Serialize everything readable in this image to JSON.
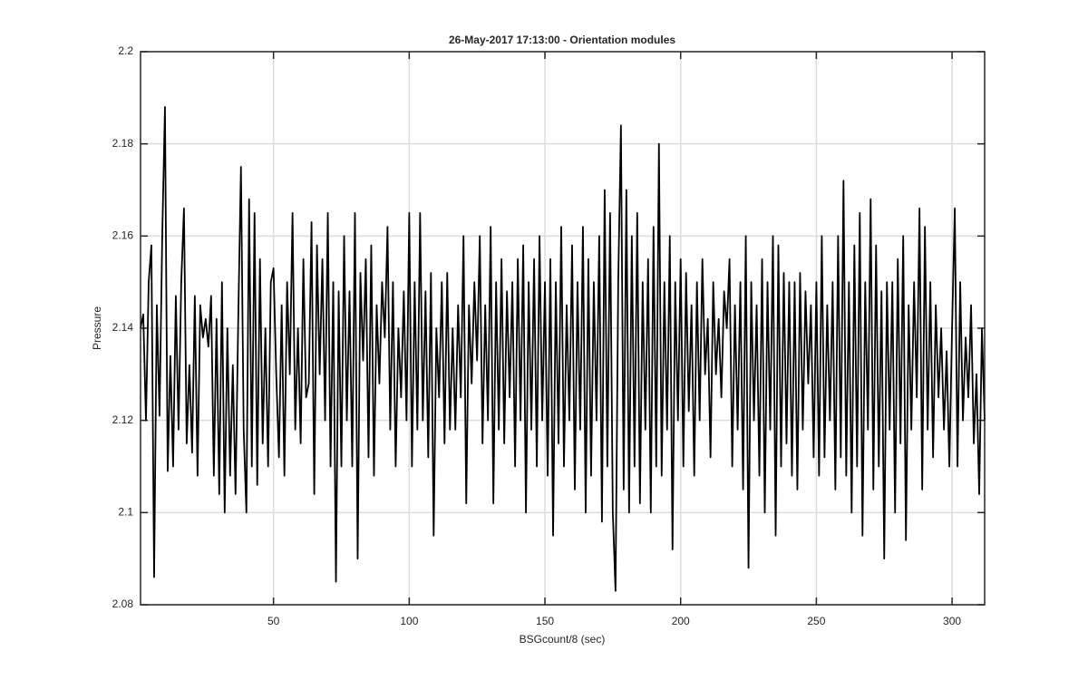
{
  "chart_data": {
    "type": "line",
    "title": "26-May-2017 17:13:00 - Orientation modules",
    "xlabel": "BSGcount/8 (sec)",
    "ylabel": "Pressure",
    "color": "#000000",
    "grid": true,
    "xlim": [
      1,
      312
    ],
    "ylim": [
      2.08,
      2.2
    ],
    "xticks": [
      50,
      100,
      150,
      200,
      250,
      300
    ],
    "yticks": [
      2.08,
      2.1,
      2.12,
      2.14,
      2.16,
      2.18,
      2.2
    ],
    "x": [
      1,
      2,
      3,
      4,
      5,
      6,
      7,
      8,
      9,
      10,
      11,
      12,
      13,
      14,
      15,
      16,
      17,
      18,
      19,
      20,
      21,
      22,
      23,
      24,
      25,
      26,
      27,
      28,
      29,
      30,
      31,
      32,
      33,
      34,
      35,
      36,
      37,
      38,
      39,
      40,
      41,
      42,
      43,
      44,
      45,
      46,
      47,
      48,
      49,
      50,
      51,
      52,
      53,
      54,
      55,
      56,
      57,
      58,
      59,
      60,
      61,
      62,
      63,
      64,
      65,
      66,
      67,
      68,
      69,
      70,
      71,
      72,
      73,
      74,
      75,
      76,
      77,
      78,
      79,
      80,
      81,
      82,
      83,
      84,
      85,
      86,
      87,
      88,
      89,
      90,
      91,
      92,
      93,
      94,
      95,
      96,
      97,
      98,
      99,
      100,
      101,
      102,
      103,
      104,
      105,
      106,
      107,
      108,
      109,
      110,
      111,
      112,
      113,
      114,
      115,
      116,
      117,
      118,
      119,
      120,
      121,
      122,
      123,
      124,
      125,
      126,
      127,
      128,
      129,
      130,
      131,
      132,
      133,
      134,
      135,
      136,
      137,
      138,
      139,
      140,
      141,
      142,
      143,
      144,
      145,
      146,
      147,
      148,
      149,
      150,
      151,
      152,
      153,
      154,
      155,
      156,
      157,
      158,
      159,
      160,
      161,
      162,
      163,
      164,
      165,
      166,
      167,
      168,
      169,
      170,
      171,
      172,
      173,
      174,
      175,
      176,
      177,
      178,
      179,
      180,
      181,
      182,
      183,
      184,
      185,
      186,
      187,
      188,
      189,
      190,
      191,
      192,
      193,
      194,
      195,
      196,
      197,
      198,
      199,
      200,
      201,
      202,
      203,
      204,
      205,
      206,
      207,
      208,
      209,
      210,
      211,
      212,
      213,
      214,
      215,
      216,
      217,
      218,
      219,
      220,
      221,
      222,
      223,
      224,
      225,
      226,
      227,
      228,
      229,
      230,
      231,
      232,
      233,
      234,
      235,
      236,
      237,
      238,
      239,
      240,
      241,
      242,
      243,
      244,
      245,
      246,
      247,
      248,
      249,
      250,
      251,
      252,
      253,
      254,
      255,
      256,
      257,
      258,
      259,
      260,
      261,
      262,
      263,
      264,
      265,
      266,
      267,
      268,
      269,
      270,
      271,
      272,
      273,
      274,
      275,
      276,
      277,
      278,
      279,
      280,
      281,
      282,
      283,
      284,
      285,
      286,
      287,
      288,
      289,
      290,
      291,
      292,
      293,
      294,
      295,
      296,
      297,
      298,
      299,
      300,
      301,
      302,
      303,
      304,
      305,
      306,
      307,
      308,
      309,
      310,
      311,
      312
    ],
    "values": [
      2.14,
      2.143,
      2.12,
      2.15,
      2.158,
      2.086,
      2.145,
      2.121,
      2.16,
      2.188,
      2.109,
      2.134,
      2.11,
      2.147,
      2.118,
      2.15,
      2.166,
      2.115,
      2.132,
      2.113,
      2.147,
      2.108,
      2.145,
      2.138,
      2.142,
      2.136,
      2.147,
      2.108,
      2.142,
      2.104,
      2.15,
      2.1,
      2.14,
      2.108,
      2.132,
      2.104,
      2.142,
      2.175,
      2.118,
      2.1,
      2.168,
      2.11,
      2.165,
      2.106,
      2.155,
      2.115,
      2.14,
      2.11,
      2.15,
      2.153,
      2.13,
      2.112,
      2.145,
      2.108,
      2.15,
      2.13,
      2.165,
      2.118,
      2.14,
      2.115,
      2.155,
      2.125,
      2.128,
      2.163,
      2.104,
      2.158,
      2.13,
      2.155,
      2.12,
      2.165,
      2.11,
      2.15,
      2.085,
      2.148,
      2.11,
      2.16,
      2.12,
      2.148,
      2.11,
      2.165,
      2.09,
      2.152,
      2.133,
      2.155,
      2.112,
      2.158,
      2.108,
      2.145,
      2.128,
      2.15,
      2.138,
      2.162,
      2.118,
      2.15,
      2.11,
      2.14,
      2.125,
      2.148,
      2.12,
      2.165,
      2.11,
      2.15,
      2.118,
      2.165,
      2.12,
      2.148,
      2.112,
      2.152,
      2.095,
      2.14,
      2.125,
      2.15,
      2.115,
      2.152,
      2.118,
      2.14,
      2.118,
      2.145,
      2.125,
      2.16,
      2.102,
      2.145,
      2.128,
      2.15,
      2.133,
      2.16,
      2.115,
      2.145,
      2.12,
      2.162,
      2.102,
      2.15,
      2.118,
      2.155,
      2.115,
      2.148,
      2.125,
      2.15,
      2.11,
      2.155,
      2.12,
      2.158,
      2.1,
      2.15,
      2.118,
      2.155,
      2.11,
      2.16,
      2.12,
      2.15,
      2.108,
      2.155,
      2.095,
      2.15,
      2.115,
      2.162,
      2.11,
      2.145,
      2.12,
      2.158,
      2.105,
      2.15,
      2.118,
      2.162,
      2.1,
      2.155,
      2.108,
      2.15,
      2.12,
      2.16,
      2.098,
      2.17,
      2.11,
      2.165,
      2.1,
      2.083,
      2.15,
      2.184,
      2.105,
      2.17,
      2.1,
      2.16,
      2.11,
      2.165,
      2.102,
      2.15,
      2.118,
      2.155,
      2.1,
      2.162,
      2.11,
      2.18,
      2.108,
      2.15,
      2.118,
      2.16,
      2.092,
      2.15,
      2.12,
      2.155,
      2.11,
      2.152,
      2.122,
      2.145,
      2.108,
      2.15,
      2.12,
      2.155,
      2.13,
      2.142,
      2.112,
      2.15,
      2.13,
      2.142,
      2.125,
      2.148,
      2.14,
      2.155,
      2.11,
      2.145,
      2.118,
      2.15,
      2.105,
      2.16,
      2.088,
      2.15,
      2.12,
      2.145,
      2.108,
      2.155,
      2.1,
      2.15,
      2.118,
      2.16,
      2.095,
      2.158,
      2.11,
      2.152,
      2.115,
      2.15,
      2.108,
      2.15,
      2.105,
      2.152,
      2.118,
      2.148,
      2.128,
      2.145,
      2.112,
      2.15,
      2.108,
      2.16,
      2.112,
      2.145,
      2.12,
      2.15,
      2.105,
      2.16,
      2.112,
      2.172,
      2.108,
      2.15,
      2.1,
      2.158,
      2.11,
      2.165,
      2.095,
      2.15,
      2.118,
      2.168,
      2.105,
      2.158,
      2.11,
      2.148,
      2.09,
      2.15,
      2.118,
      2.15,
      2.1,
      2.155,
      2.115,
      2.16,
      2.094,
      2.145,
      2.118,
      2.15,
      2.125,
      2.166,
      2.105,
      2.162,
      2.118,
      2.15,
      2.112,
      2.145,
      2.125,
      2.14,
      2.118,
      2.135,
      2.11,
      2.14,
      2.166,
      2.11,
      2.15,
      2.12,
      2.138,
      2.125,
      2.145,
      2.115,
      2.13,
      2.104,
      2.14,
      2.12
    ]
  }
}
